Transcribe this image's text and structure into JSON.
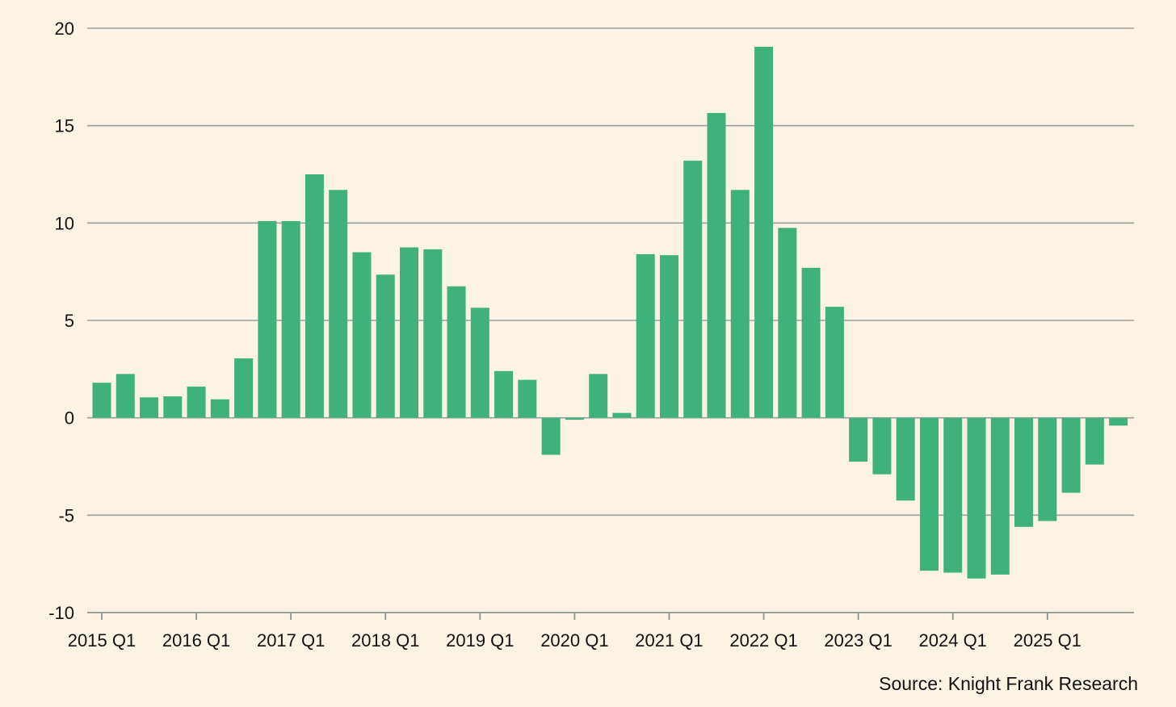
{
  "chart_data": {
    "type": "bar",
    "title": "",
    "xlabel": "",
    "ylabel": "",
    "ylim": [
      -10,
      20
    ],
    "y_ticks": [
      20,
      15,
      10,
      5,
      0,
      -5,
      -10
    ],
    "grid": true,
    "categories": [
      "2015 Q1",
      "2015 Q2",
      "2015 Q3",
      "2015 Q4",
      "2016 Q1",
      "2016 Q2",
      "2016 Q3",
      "2016 Q4",
      "2017 Q1",
      "2017 Q2",
      "2017 Q3",
      "2017 Q4",
      "2018 Q1",
      "2018 Q2",
      "2018 Q3",
      "2018 Q4",
      "2019 Q1",
      "2019 Q2",
      "2019 Q3",
      "2019 Q4",
      "2020 Q1",
      "2020 Q2",
      "2020 Q3",
      "2020 Q4",
      "2021 Q1",
      "2021 Q2",
      "2021 Q3",
      "2021 Q4",
      "2022 Q1",
      "2022 Q2",
      "2022 Q3",
      "2022 Q4",
      "2023 Q1",
      "2023 Q2",
      "2023 Q3",
      "2023 Q4",
      "2024 Q1",
      "2024 Q2",
      "2024 Q3",
      "2024 Q4",
      "2025 Q1",
      "2025 Q2",
      "2025 Q3",
      "2025 Q4"
    ],
    "x_tick_labels": [
      "2015 Q1",
      "2016 Q1",
      "2017 Q1",
      "2018 Q1",
      "2019 Q1",
      "2020 Q1",
      "2021 Q1",
      "2022 Q1",
      "2023 Q1",
      "2024 Q1",
      "2025 Q1"
    ],
    "values": [
      1.8,
      2.25,
      1.05,
      1.1,
      1.6,
      0.95,
      3.05,
      10.1,
      10.1,
      12.5,
      11.7,
      8.5,
      7.35,
      8.75,
      8.65,
      6.75,
      5.65,
      2.4,
      1.95,
      -1.9,
      -0.1,
      2.25,
      0.25,
      8.4,
      8.35,
      13.2,
      15.65,
      11.7,
      19.05,
      9.75,
      7.7,
      5.7,
      -2.25,
      -2.9,
      -4.25,
      -7.85,
      -7.95,
      -8.25,
      -8.05,
      -5.6,
      -5.3,
      -3.85,
      -2.4,
      -0.4
    ],
    "colors": {
      "bar": "#3fb17b",
      "grid": "#9aa19d",
      "axis": "#8d948f",
      "background": "#fcf3e2"
    }
  },
  "source_note": "Source: Knight Frank Research"
}
